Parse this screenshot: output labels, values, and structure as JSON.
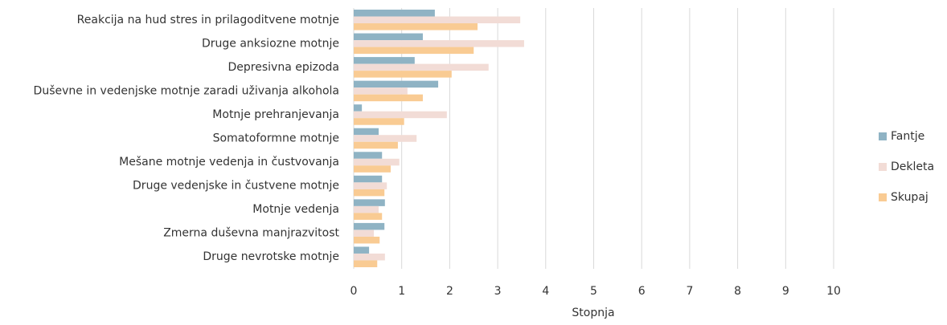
{
  "chart_data": {
    "type": "hbar",
    "xlabel": "Stopnja",
    "categories": [
      "Reakcija na hud stres in prilagoditvene motnje",
      "Druge anksiozne motnje",
      "Depresivna epizoda",
      "Duševne in vedenjske motnje zaradi uživanja alkohola",
      "Motnje prehranjevanja",
      "Somatoformne motnje",
      "Mešane motnje vedenja in čustvovanja",
      "Druge vedenjske in čustvene motnje",
      "Motnje vedenja",
      "Zmerna duševna manjrazvitost",
      "Druge nevrotske motnje"
    ],
    "series": [
      {
        "name": "Fantje",
        "color": "#8fb3c4",
        "values": [
          1.69,
          1.44,
          1.27,
          1.76,
          0.17,
          0.52,
          0.59,
          0.59,
          0.65,
          0.64,
          0.32
        ]
      },
      {
        "name": "Dekleta",
        "color": "#f2dcd6",
        "values": [
          3.47,
          3.55,
          2.81,
          1.12,
          1.94,
          1.31,
          0.95,
          0.69,
          0.52,
          0.42,
          0.65
        ]
      },
      {
        "name": "Skupaj",
        "color": "#f9cb93",
        "values": [
          2.58,
          2.5,
          2.04,
          1.44,
          1.05,
          0.92,
          0.77,
          0.64,
          0.59,
          0.54,
          0.49
        ]
      }
    ],
    "xlim": [
      0,
      10
    ],
    "xticks": [
      0,
      1,
      2,
      3,
      4,
      5,
      6,
      7,
      8,
      9,
      10
    ],
    "grid": true,
    "legend": "right"
  }
}
